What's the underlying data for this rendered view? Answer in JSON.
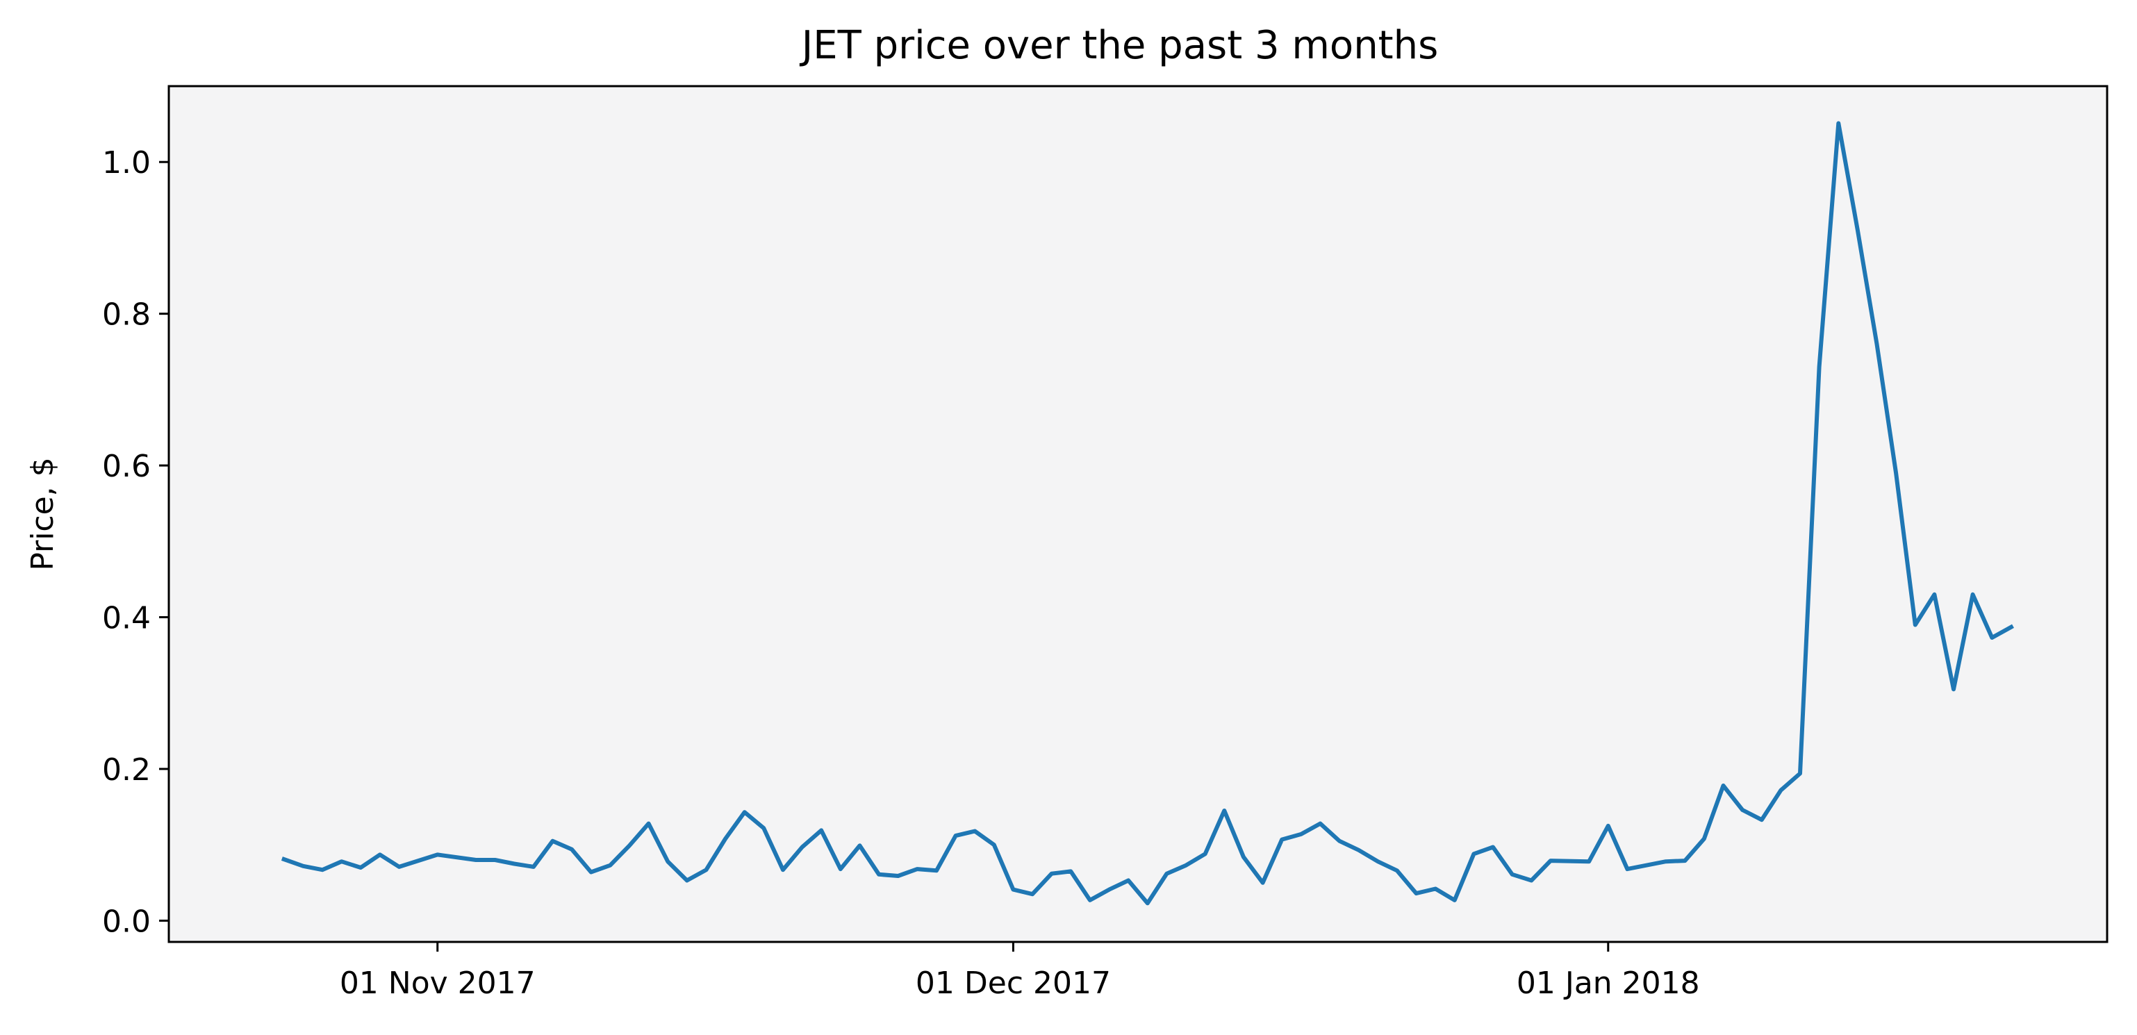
{
  "chart_data": {
    "type": "line",
    "title": "JET price over the past 3 months",
    "xlabel": "",
    "ylabel": "Price, $",
    "xlim": [
      "2017-10-18",
      "2018-01-27"
    ],
    "ylim": [
      -0.028,
      1.1
    ],
    "grid": false,
    "colors": {
      "line": "#1f77b4",
      "plot_bg": "#f4f4f5"
    },
    "x_ticks": [
      {
        "date": "2017-11-01",
        "label": "01 Nov 2017"
      },
      {
        "date": "2017-12-01",
        "label": "01 Dec 2017"
      },
      {
        "date": "2018-01-01",
        "label": "01 Jan 2018"
      }
    ],
    "y_ticks": [
      {
        "value": 0.0,
        "label": "0.0"
      },
      {
        "value": 0.2,
        "label": "0.2"
      },
      {
        "value": 0.4,
        "label": "0.4"
      },
      {
        "value": 0.6,
        "label": "0.6"
      },
      {
        "value": 0.8,
        "label": "0.8"
      },
      {
        "value": 1.0,
        "label": "1.0"
      }
    ],
    "series": [
      {
        "points": [
          [
            "2017-10-24",
            0.081
          ],
          [
            "2017-10-25",
            0.072
          ],
          [
            "2017-10-26",
            0.067
          ],
          [
            "2017-10-27",
            0.078
          ],
          [
            "2017-10-28",
            0.07
          ],
          [
            "2017-10-29",
            0.087
          ],
          [
            "2017-10-30",
            0.071
          ],
          [
            "2017-10-31",
            0.079
          ],
          [
            "2017-11-01",
            0.087
          ],
          [
            "2017-11-03",
            0.08
          ],
          [
            "2017-11-04",
            0.08
          ],
          [
            "2017-11-05",
            0.075
          ],
          [
            "2017-11-06",
            0.071
          ],
          [
            "2017-11-07",
            0.105
          ],
          [
            "2017-11-08",
            0.094
          ],
          [
            "2017-11-09",
            0.064
          ],
          [
            "2017-11-10",
            0.073
          ],
          [
            "2017-11-11",
            0.099
          ],
          [
            "2017-11-12",
            0.128
          ],
          [
            "2017-11-13",
            0.078
          ],
          [
            "2017-11-14",
            0.053
          ],
          [
            "2017-11-15",
            0.067
          ],
          [
            "2017-11-16",
            0.108
          ],
          [
            "2017-11-17",
            0.143
          ],
          [
            "2017-11-18",
            0.122
          ],
          [
            "2017-11-19",
            0.067
          ],
          [
            "2017-11-20",
            0.097
          ],
          [
            "2017-11-21",
            0.119
          ],
          [
            "2017-11-22",
            0.068
          ],
          [
            "2017-11-23",
            0.099
          ],
          [
            "2017-11-24",
            0.061
          ],
          [
            "2017-11-25",
            0.059
          ],
          [
            "2017-11-26",
            0.068
          ],
          [
            "2017-11-27",
            0.066
          ],
          [
            "2017-11-28",
            0.112
          ],
          [
            "2017-11-29",
            0.118
          ],
          [
            "2017-11-30",
            0.1
          ],
          [
            "2017-12-01",
            0.041
          ],
          [
            "2017-12-02",
            0.035
          ],
          [
            "2017-12-03",
            0.062
          ],
          [
            "2017-12-04",
            0.065
          ],
          [
            "2017-12-05",
            0.027
          ],
          [
            "2017-12-06",
            0.041
          ],
          [
            "2017-12-07",
            0.053
          ],
          [
            "2017-12-08",
            0.023
          ],
          [
            "2017-12-09",
            0.062
          ],
          [
            "2017-12-10",
            0.073
          ],
          [
            "2017-12-11",
            0.088
          ],
          [
            "2017-12-12",
            0.145
          ],
          [
            "2017-12-13",
            0.084
          ],
          [
            "2017-12-14",
            0.05
          ],
          [
            "2017-12-15",
            0.107
          ],
          [
            "2017-12-16",
            0.114
          ],
          [
            "2017-12-17",
            0.128
          ],
          [
            "2017-12-18",
            0.105
          ],
          [
            "2017-12-19",
            0.093
          ],
          [
            "2017-12-20",
            0.078
          ],
          [
            "2017-12-21",
            0.066
          ],
          [
            "2017-12-22",
            0.036
          ],
          [
            "2017-12-23",
            0.042
          ],
          [
            "2017-12-24",
            0.027
          ],
          [
            "2017-12-25",
            0.088
          ],
          [
            "2017-12-26",
            0.097
          ],
          [
            "2017-12-27",
            0.061
          ],
          [
            "2017-12-28",
            0.053
          ],
          [
            "2017-12-29",
            0.079
          ],
          [
            "2017-12-31",
            0.078
          ],
          [
            "2018-01-01",
            0.125
          ],
          [
            "2018-01-02",
            0.068
          ],
          [
            "2018-01-04",
            0.078
          ],
          [
            "2018-01-05",
            0.079
          ],
          [
            "2018-01-06",
            0.108
          ],
          [
            "2018-01-07",
            0.178
          ],
          [
            "2018-01-08",
            0.146
          ],
          [
            "2018-01-09",
            0.133
          ],
          [
            "2018-01-10",
            0.172
          ],
          [
            "2018-01-11",
            0.194
          ],
          [
            "2018-01-12",
            0.73
          ],
          [
            "2018-01-13",
            1.051
          ],
          [
            "2018-01-14",
            0.91
          ],
          [
            "2018-01-15",
            0.76
          ],
          [
            "2018-01-16",
            0.59
          ],
          [
            "2018-01-17",
            0.39
          ],
          [
            "2018-01-18",
            0.43
          ],
          [
            "2018-01-19",
            0.305
          ],
          [
            "2018-01-20",
            0.43
          ],
          [
            "2018-01-21",
            0.373
          ],
          [
            "2018-01-22",
            0.387
          ]
        ]
      }
    ]
  }
}
